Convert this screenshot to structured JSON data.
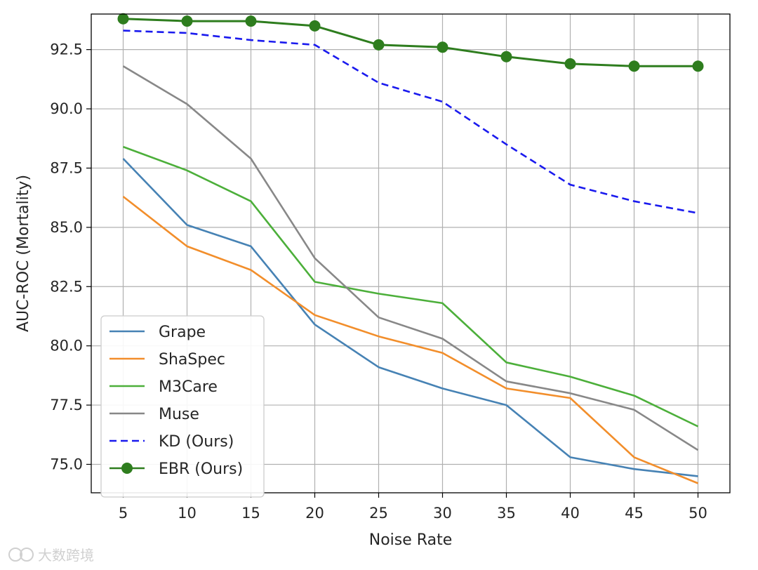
{
  "chart_data": {
    "type": "line",
    "xlabel": "Noise Rate",
    "ylabel": "AUC-ROC (Mortality)",
    "x": [
      5,
      10,
      15,
      20,
      25,
      30,
      35,
      40,
      45,
      50
    ],
    "xlim": [
      2.5,
      52.5
    ],
    "ylim": [
      73.8,
      94.0
    ],
    "xticks": [
      5,
      10,
      15,
      20,
      25,
      30,
      35,
      40,
      45,
      50
    ],
    "yticks": [
      75.0,
      77.5,
      80.0,
      82.5,
      85.0,
      87.5,
      90.0,
      92.5
    ],
    "grid": true,
    "legend_position": "lower-left",
    "series": [
      {
        "name": "Grape",
        "color": "#4682b4",
        "style": "solid",
        "marker": "none",
        "values": [
          87.9,
          85.1,
          84.2,
          80.9,
          79.1,
          78.2,
          77.5,
          75.3,
          74.8,
          74.5
        ]
      },
      {
        "name": "ShaSpec",
        "color": "#f28e2b",
        "style": "solid",
        "marker": "none",
        "values": [
          86.3,
          84.2,
          83.2,
          81.3,
          80.4,
          79.7,
          78.2,
          77.8,
          75.3,
          74.2
        ]
      },
      {
        "name": "M3Care",
        "color": "#4caf3a",
        "style": "solid",
        "marker": "none",
        "values": [
          88.4,
          87.4,
          86.1,
          82.7,
          82.2,
          81.8,
          79.3,
          78.7,
          77.9,
          76.6
        ]
      },
      {
        "name": "Muse",
        "color": "#888888",
        "style": "solid",
        "marker": "none",
        "values": [
          91.8,
          90.2,
          87.9,
          83.7,
          81.2,
          80.3,
          78.5,
          78.0,
          77.3,
          75.6
        ]
      },
      {
        "name": "KD (Ours)",
        "color": "#1a1aee",
        "style": "dashed",
        "marker": "none",
        "values": [
          93.3,
          93.2,
          92.9,
          92.7,
          91.1,
          90.3,
          88.5,
          86.8,
          86.1,
          85.6
        ]
      },
      {
        "name": "EBR (Ours)",
        "color": "#2e7d1e",
        "style": "solid",
        "marker": "circle",
        "values": [
          93.8,
          93.7,
          93.7,
          93.5,
          92.7,
          92.6,
          92.2,
          91.9,
          91.8,
          91.8
        ]
      }
    ]
  },
  "watermark": "大数跨境"
}
